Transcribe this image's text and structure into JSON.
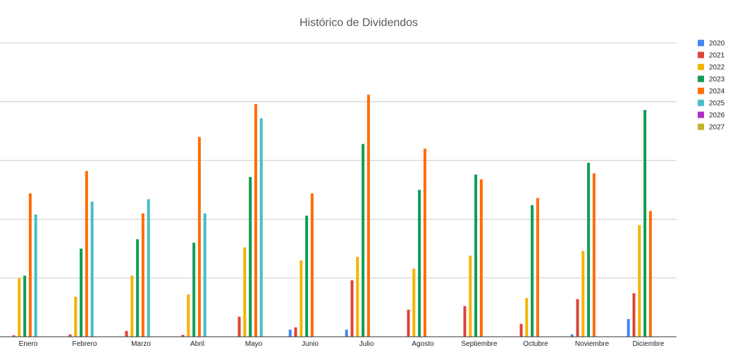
{
  "chart_data": {
    "type": "bar",
    "title": "Histórico de Dividendos",
    "xlabel": "",
    "ylabel": "",
    "ylim": [
      0,
      100
    ],
    "grid": true,
    "legend_position": "right",
    "categories": [
      "Enero",
      "Febrero",
      "Marzo",
      "Abril",
      "Mayo",
      "Junio",
      "Julio",
      "Agosto",
      "Septiembre",
      "Octubre",
      "Noviembre",
      "Diciembre"
    ],
    "series": [
      {
        "name": "2020",
        "color": "#4285f4",
        "values": [
          0,
          0,
          0,
          0,
          0,
          3,
          3,
          0,
          0,
          0,
          1,
          7.5
        ]
      },
      {
        "name": "2021",
        "color": "#db4437",
        "values": [
          0.6,
          1,
          2.5,
          0.8,
          8.5,
          4,
          24,
          11.5,
          13,
          5.5,
          16,
          18.5
        ]
      },
      {
        "name": "2022",
        "color": "#f4b400",
        "values": [
          25,
          17,
          26,
          18,
          38,
          32.5,
          34,
          29,
          34.5,
          16.5,
          36.5,
          47.5
        ]
      },
      {
        "name": "2023",
        "color": "#0f9d58",
        "values": [
          26,
          37.5,
          41.5,
          40,
          68,
          51.5,
          82,
          62.5,
          69,
          56,
          74,
          96.5
        ]
      },
      {
        "name": "2024",
        "color": "#ff6d00",
        "values": [
          61,
          70.5,
          52.5,
          85,
          99,
          61,
          103,
          80,
          67,
          59,
          69.5,
          53.5
        ]
      },
      {
        "name": "2025",
        "color": "#46bdc6",
        "values": [
          52,
          57.5,
          58.5,
          52.5,
          93,
          0,
          0,
          0,
          0,
          0,
          0,
          0
        ]
      },
      {
        "name": "2026",
        "color": "#ab30c4",
        "values": [
          0,
          0,
          0,
          0,
          0,
          0,
          0,
          0,
          0,
          0,
          0,
          0
        ]
      },
      {
        "name": "2027",
        "color": "#c2b12a",
        "values": [
          0,
          0,
          0,
          0,
          0,
          0,
          0,
          0,
          0,
          0,
          0,
          0
        ]
      }
    ]
  }
}
